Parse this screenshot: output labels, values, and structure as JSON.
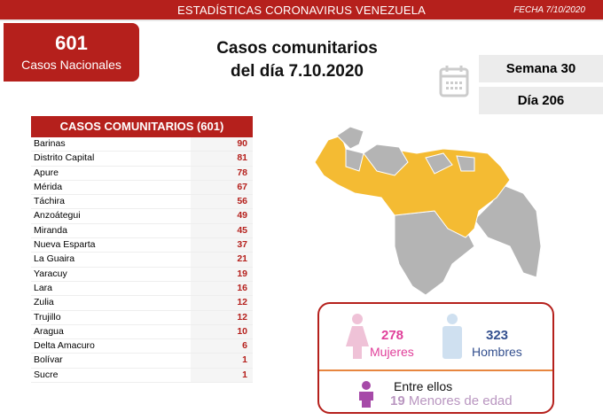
{
  "header": {
    "title": "ESTADÍSTICAS CORONAVIRUS VENEZUELA",
    "date": "FECHA 7/10/2020"
  },
  "national": {
    "count": "601",
    "label": "Casos Nacionales"
  },
  "title": {
    "line1": "Casos comunitarios",
    "line2": "del día 7.10.2020"
  },
  "calendar": {
    "icon": "calendar-icon",
    "week": "Semana 30",
    "day": "Día 206"
  },
  "table": {
    "header": "CASOS COMUNITARIOS (601)",
    "rows": [
      {
        "state": "Barinas",
        "cases": "90"
      },
      {
        "state": "Distrito Capital",
        "cases": "81"
      },
      {
        "state": "Apure",
        "cases": "78"
      },
      {
        "state": "Mérida",
        "cases": "67"
      },
      {
        "state": "Táchira",
        "cases": "56"
      },
      {
        "state": "Anzoátegui",
        "cases": "49"
      },
      {
        "state": "Miranda",
        "cases": "45"
      },
      {
        "state": "Nueva Esparta",
        "cases": "37"
      },
      {
        "state": "La Guaira",
        "cases": "21"
      },
      {
        "state": "Yaracuy",
        "cases": "19"
      },
      {
        "state": "Lara",
        "cases": "16"
      },
      {
        "state": "Zulia",
        "cases": "12"
      },
      {
        "state": "Trujillo",
        "cases": "12"
      },
      {
        "state": "Aragua",
        "cases": "10"
      },
      {
        "state": "Delta Amacuro",
        "cases": "6"
      },
      {
        "state": "Bolívar",
        "cases": "1"
      },
      {
        "state": "Sucre",
        "cases": "1"
      }
    ]
  },
  "gender": {
    "women_count": "278",
    "women_label": "Mujeres",
    "men_count": "323",
    "men_label": "Hombres",
    "among": "Entre ellos",
    "minors_count": "19",
    "minors_label": "Menores de edad"
  },
  "colors": {
    "brand": "#b5201c",
    "map_yellow": "#f4bb33",
    "map_gray": "#b4b4b4",
    "women": "#e0409a",
    "men": "#34508f",
    "minors": "#a64aa8"
  }
}
